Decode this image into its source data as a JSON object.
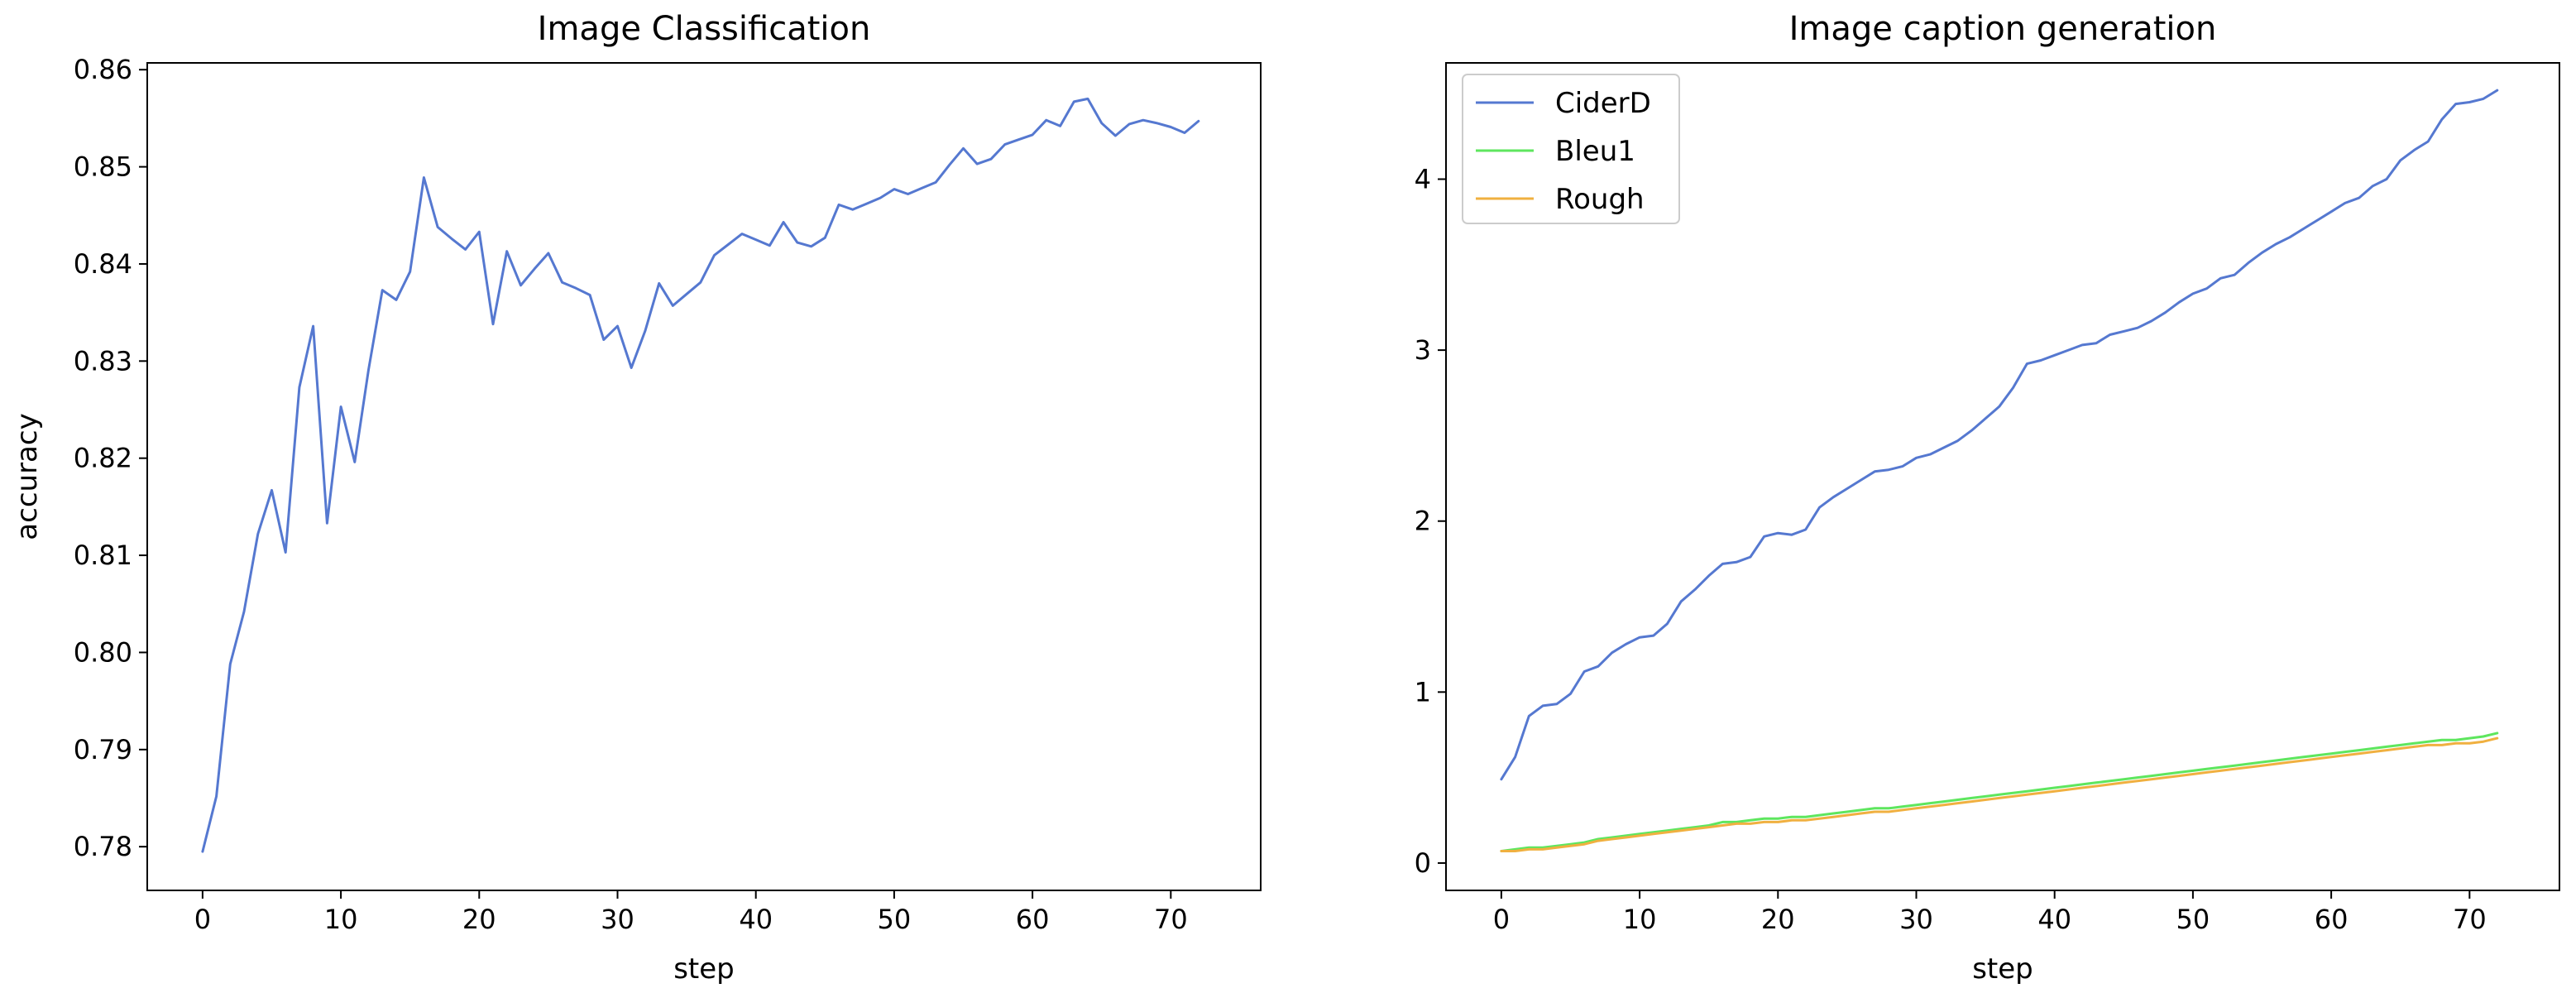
{
  "chart_data": [
    {
      "type": "line",
      "title": "Image Classification",
      "xlabel": "step",
      "ylabel": "accuracy",
      "xlim": [
        -4,
        76.5
      ],
      "ylim": [
        0.7755,
        0.8607
      ],
      "xticks": [
        0,
        10,
        20,
        30,
        40,
        50,
        60,
        70
      ],
      "yticks": [
        0.78,
        0.79,
        0.8,
        0.81,
        0.82,
        0.83,
        0.84,
        0.85,
        0.86
      ],
      "ytick_labels": [
        "0.78",
        "0.79",
        "0.80",
        "0.81",
        "0.82",
        "0.83",
        "0.84",
        "0.85",
        "0.86"
      ],
      "legend": null,
      "grid": false,
      "series": [
        {
          "color": "#5578d0",
          "x": [
            0,
            1,
            2,
            3,
            4,
            5,
            6,
            7,
            8,
            9,
            10,
            11,
            12,
            13,
            14,
            15,
            16,
            17,
            18,
            19,
            20,
            21,
            22,
            23,
            24,
            25,
            26,
            27,
            28,
            29,
            30,
            31,
            32,
            33,
            34,
            35,
            36,
            37,
            38,
            39,
            40,
            41,
            42,
            43,
            44,
            45,
            46,
            47,
            48,
            49,
            50,
            51,
            52,
            53,
            54,
            55,
            56,
            57,
            58,
            59,
            60,
            61,
            62,
            63,
            64,
            65,
            66,
            67,
            68,
            69,
            70,
            71,
            72
          ],
          "values": [
            0.7795,
            0.7852,
            0.7988,
            0.8042,
            0.8122,
            0.8167,
            0.8103,
            0.8273,
            0.8336,
            0.8133,
            0.8253,
            0.8196,
            0.8291,
            0.8373,
            0.8363,
            0.8392,
            0.8489,
            0.8438,
            0.8426,
            0.8415,
            0.8433,
            0.8338,
            0.8413,
            0.8378,
            0.8395,
            0.8411,
            0.8381,
            0.8375,
            0.8368,
            0.8322,
            0.8336,
            0.8293,
            0.8331,
            0.838,
            0.8357,
            0.8369,
            0.8381,
            0.8409,
            0.842,
            0.8431,
            0.8425,
            0.8419,
            0.8443,
            0.8422,
            0.8418,
            0.8427,
            0.8461,
            0.8456,
            0.8462,
            0.8468,
            0.8477,
            0.8472,
            0.8478,
            0.8484,
            0.8502,
            0.8519,
            0.8503,
            0.8508,
            0.8523,
            0.8528,
            0.8533,
            0.8548,
            0.8542,
            0.8567,
            0.857,
            0.8545,
            0.8532,
            0.8544,
            0.8548,
            0.8545,
            0.8541,
            0.8535,
            0.8547
          ]
        }
      ]
    },
    {
      "type": "line",
      "title": "Image caption generation",
      "xlabel": "step",
      "ylabel": "",
      "xlim": [
        -4,
        76.5
      ],
      "ylim": [
        -0.16,
        4.68
      ],
      "xticks": [
        0,
        10,
        20,
        30,
        40,
        50,
        60,
        70
      ],
      "yticks": [
        0,
        1,
        2,
        3,
        4
      ],
      "ytick_labels": [
        "0",
        "1",
        "2",
        "3",
        "4"
      ],
      "legend": "top-left",
      "grid": false,
      "series": [
        {
          "name": "CiderD",
          "color": "#5578d0",
          "x": [
            0,
            1,
            2,
            3,
            4,
            5,
            6,
            7,
            8,
            9,
            10,
            11,
            12,
            13,
            14,
            15,
            16,
            17,
            18,
            19,
            20,
            21,
            22,
            23,
            24,
            25,
            26,
            27,
            28,
            29,
            30,
            31,
            32,
            33,
            34,
            35,
            36,
            37,
            38,
            39,
            40,
            41,
            42,
            43,
            44,
            45,
            46,
            47,
            48,
            49,
            50,
            51,
            52,
            53,
            54,
            55,
            56,
            57,
            58,
            59,
            60,
            61,
            62,
            63,
            64,
            65,
            66,
            67,
            68,
            69,
            70,
            71,
            72
          ],
          "values": [
            0.49,
            0.62,
            0.86,
            0.92,
            0.93,
            0.99,
            1.12,
            1.15,
            1.23,
            1.28,
            1.32,
            1.33,
            1.4,
            1.53,
            1.6,
            1.68,
            1.75,
            1.76,
            1.79,
            1.91,
            1.93,
            1.92,
            1.95,
            2.08,
            2.14,
            2.19,
            2.24,
            2.29,
            2.3,
            2.32,
            2.37,
            2.39,
            2.43,
            2.47,
            2.53,
            2.6,
            2.67,
            2.78,
            2.92,
            2.94,
            2.97,
            3.0,
            3.03,
            3.04,
            3.09,
            3.11,
            3.13,
            3.17,
            3.22,
            3.28,
            3.33,
            3.36,
            3.42,
            3.44,
            3.51,
            3.57,
            3.62,
            3.66,
            3.71,
            3.76,
            3.81,
            3.86,
            3.89,
            3.96,
            4.0,
            4.11,
            4.17,
            4.22,
            4.35,
            4.44,
            4.45,
            4.47,
            4.52
          ]
        },
        {
          "name": "Bleu1",
          "color": "#5ee65e",
          "x": [
            0,
            1,
            2,
            3,
            4,
            5,
            6,
            7,
            8,
            9,
            10,
            11,
            12,
            13,
            14,
            15,
            16,
            17,
            18,
            19,
            20,
            21,
            22,
            23,
            24,
            25,
            26,
            27,
            28,
            29,
            30,
            31,
            32,
            33,
            34,
            35,
            36,
            37,
            38,
            39,
            40,
            41,
            42,
            43,
            44,
            45,
            46,
            47,
            48,
            49,
            50,
            51,
            52,
            53,
            54,
            55,
            56,
            57,
            58,
            59,
            60,
            61,
            62,
            63,
            64,
            65,
            66,
            67,
            68,
            69,
            70,
            71,
            72
          ],
          "values": [
            0.07,
            0.08,
            0.09,
            0.09,
            0.1,
            0.11,
            0.12,
            0.14,
            0.15,
            0.16,
            0.17,
            0.18,
            0.19,
            0.2,
            0.21,
            0.22,
            0.24,
            0.24,
            0.25,
            0.26,
            0.26,
            0.27,
            0.27,
            0.28,
            0.29,
            0.3,
            0.31,
            0.32,
            0.32,
            0.33,
            0.34,
            0.35,
            0.36,
            0.37,
            0.38,
            0.39,
            0.4,
            0.41,
            0.42,
            0.43,
            0.44,
            0.45,
            0.46,
            0.47,
            0.48,
            0.49,
            0.5,
            0.51,
            0.52,
            0.53,
            0.54,
            0.55,
            0.56,
            0.57,
            0.58,
            0.59,
            0.6,
            0.61,
            0.62,
            0.63,
            0.64,
            0.65,
            0.66,
            0.67,
            0.68,
            0.69,
            0.7,
            0.71,
            0.72,
            0.72,
            0.73,
            0.74,
            0.76
          ]
        },
        {
          "name": "Rough",
          "color": "#f0b040",
          "x": [
            0,
            1,
            2,
            3,
            4,
            5,
            6,
            7,
            8,
            9,
            10,
            11,
            12,
            13,
            14,
            15,
            16,
            17,
            18,
            19,
            20,
            21,
            22,
            23,
            24,
            25,
            26,
            27,
            28,
            29,
            30,
            31,
            32,
            33,
            34,
            35,
            36,
            37,
            38,
            39,
            40,
            41,
            42,
            43,
            44,
            45,
            46,
            47,
            48,
            49,
            50,
            51,
            52,
            53,
            54,
            55,
            56,
            57,
            58,
            59,
            60,
            61,
            62,
            63,
            64,
            65,
            66,
            67,
            68,
            69,
            70,
            71,
            72
          ],
          "values": [
            0.07,
            0.07,
            0.08,
            0.08,
            0.09,
            0.1,
            0.11,
            0.13,
            0.14,
            0.15,
            0.16,
            0.17,
            0.18,
            0.19,
            0.2,
            0.21,
            0.22,
            0.23,
            0.23,
            0.24,
            0.24,
            0.25,
            0.25,
            0.26,
            0.27,
            0.28,
            0.29,
            0.3,
            0.3,
            0.31,
            0.32,
            0.33,
            0.34,
            0.35,
            0.36,
            0.37,
            0.38,
            0.39,
            0.4,
            0.41,
            0.42,
            0.43,
            0.44,
            0.45,
            0.46,
            0.47,
            0.48,
            0.49,
            0.5,
            0.51,
            0.52,
            0.53,
            0.54,
            0.55,
            0.56,
            0.57,
            0.58,
            0.59,
            0.6,
            0.61,
            0.62,
            0.63,
            0.64,
            0.65,
            0.66,
            0.67,
            0.68,
            0.69,
            0.69,
            0.7,
            0.7,
            0.71,
            0.73
          ]
        }
      ]
    }
  ]
}
